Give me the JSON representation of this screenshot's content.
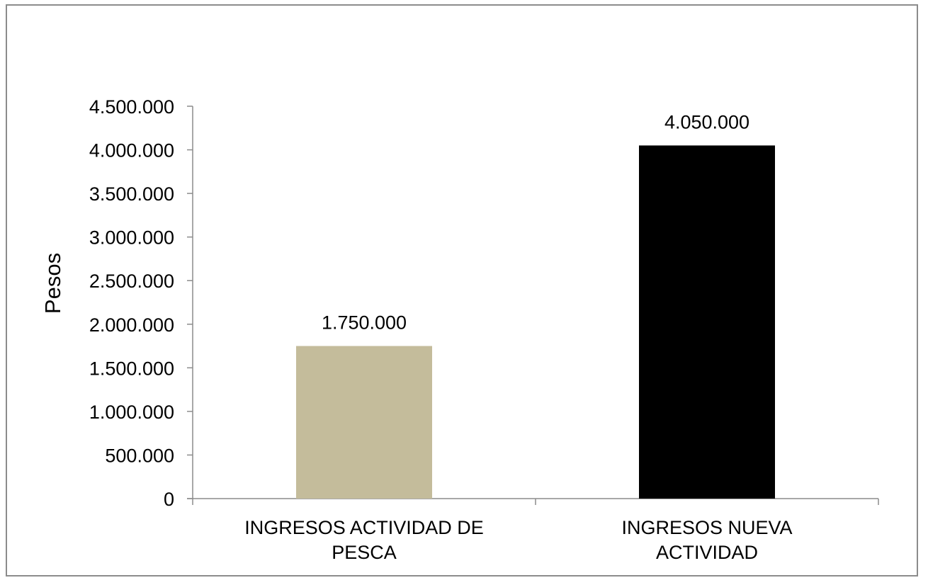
{
  "chart_data": {
    "type": "bar",
    "categories": [
      [
        "INGRESOS ACTIVIDAD DE",
        "PESCA"
      ],
      [
        "INGRESOS NUEVA",
        "ACTIVIDAD"
      ]
    ],
    "values": [
      1750000,
      4050000
    ],
    "data_labels": [
      "1.750.000",
      "4.050.000"
    ],
    "colors": [
      "#c4bc9b",
      "#000000"
    ],
    "title": "",
    "xlabel": "",
    "ylabel": "Pesos",
    "ylim": [
      0,
      4500000
    ],
    "yticks": [
      0,
      500000,
      1000000,
      1500000,
      2000000,
      2500000,
      3000000,
      3500000,
      4000000,
      4500000
    ],
    "ytick_labels": [
      "0",
      "500.000",
      "1.000.000",
      "1.500.000",
      "2.000.000",
      "2.500.000",
      "3.000.000",
      "3.500.000",
      "4.000.000",
      "4.500.000"
    ],
    "grid": false,
    "legend": "none"
  }
}
